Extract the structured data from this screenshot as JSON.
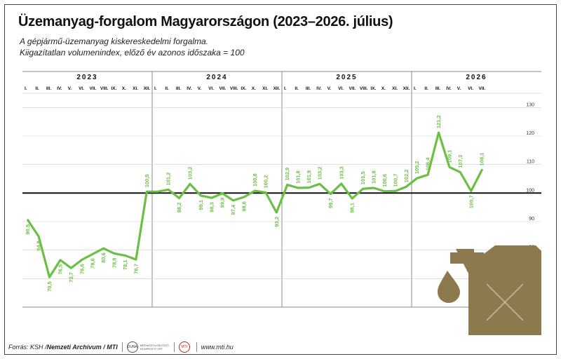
{
  "title": "Üzemanyag-forgalom Magyarországon (2023–2026. július)",
  "subtitle1": "A gépjármű-üzemanyag kiskereskedelmi forgalma.",
  "subtitle2": "Kiigazítatlan volumenindex, előző év azonos időszaka = 100",
  "footer": {
    "source_label": "Forrás: KSH / ",
    "archive": "Nemzeti Archívum / MTI",
    "duna_logo": "DUNA",
    "duna_text": "MÉDIASZOLGÁLTATÓ NONPROFIT ZRT.",
    "mti_logo": "MTI",
    "website": "www.mti.hu"
  },
  "colors": {
    "line": "#6cbf45",
    "label": "#6cbf45",
    "icon": "#8c7a4e",
    "reference": "#000000",
    "grid": "#cfcfcf",
    "year_divider": "#888888"
  },
  "icon": "fuel-canister-icon",
  "chart_data": {
    "type": "line",
    "title": "Üzemanyag-forgalom Magyarországon (2023–2026. július)",
    "xlabel": "",
    "ylabel": "",
    "ylim": [
      60,
      135
    ],
    "yticks": [
      70,
      80,
      90,
      100,
      110,
      120,
      130
    ],
    "reference_line": 100,
    "grid": "horizontal",
    "years": [
      {
        "label": "2023",
        "months": 12
      },
      {
        "label": "2024",
        "months": 12
      },
      {
        "label": "2025",
        "months": 12
      },
      {
        "label": "2026",
        "months": 7
      }
    ],
    "month_labels": [
      "I.",
      "II.",
      "III.",
      "IV.",
      "V.",
      "VI.",
      "VII.",
      "VIII.",
      "IX.",
      "X.",
      "XI.",
      "XII."
    ],
    "values": [
      90.5,
      84.8,
      70.5,
      76.5,
      73.7,
      76.6,
      78.6,
      80.6,
      78.8,
      78.1,
      76.7,
      100.5,
      100.5,
      101.2,
      98.2,
      103.2,
      99.1,
      98.3,
      99.9,
      97.4,
      98.6,
      100.8,
      100.2,
      93.2,
      102.9,
      101.8,
      101.9,
      103.2,
      99.7,
      103.3,
      98.1,
      101.5,
      101.8,
      100.6,
      100.7,
      102.2,
      105.2,
      106.4,
      121.2,
      109.1,
      107.3,
      100.7,
      108.1
    ],
    "data_labels": [
      "90,5",
      "84,8",
      "70,5",
      "76,5",
      "73,7",
      "76,6",
      "78,6",
      "80,6",
      "78,8",
      "78,1",
      "76,7",
      "100,5",
      "",
      "101,2",
      "98,2",
      "103,2",
      "99,1",
      "98,3",
      "99,9",
      "97,4",
      "98,6",
      "100,8",
      "100,2",
      "93,2",
      "102,9",
      "101,8",
      "101,9",
      "103,2",
      "99,7",
      "103,3",
      "98,1",
      "101,5",
      "101,8",
      "100,6",
      "100,7",
      "102,2",
      "105,2",
      "106,4",
      "121,2",
      "109,1",
      "107,3",
      "100,7",
      "108,1"
    ],
    "label_positions": [
      "below",
      "below",
      "below",
      "below",
      "below",
      "below",
      "below",
      "below",
      "below",
      "below",
      "below",
      "above",
      "above",
      "above",
      "below",
      "above",
      "below",
      "below",
      "below",
      "below",
      "below",
      "above",
      "above",
      "below",
      "above",
      "above",
      "above",
      "above",
      "below",
      "above",
      "below",
      "above",
      "above",
      "above",
      "above",
      "above",
      "above",
      "above",
      "above",
      "above",
      "above",
      "below",
      "above"
    ]
  }
}
